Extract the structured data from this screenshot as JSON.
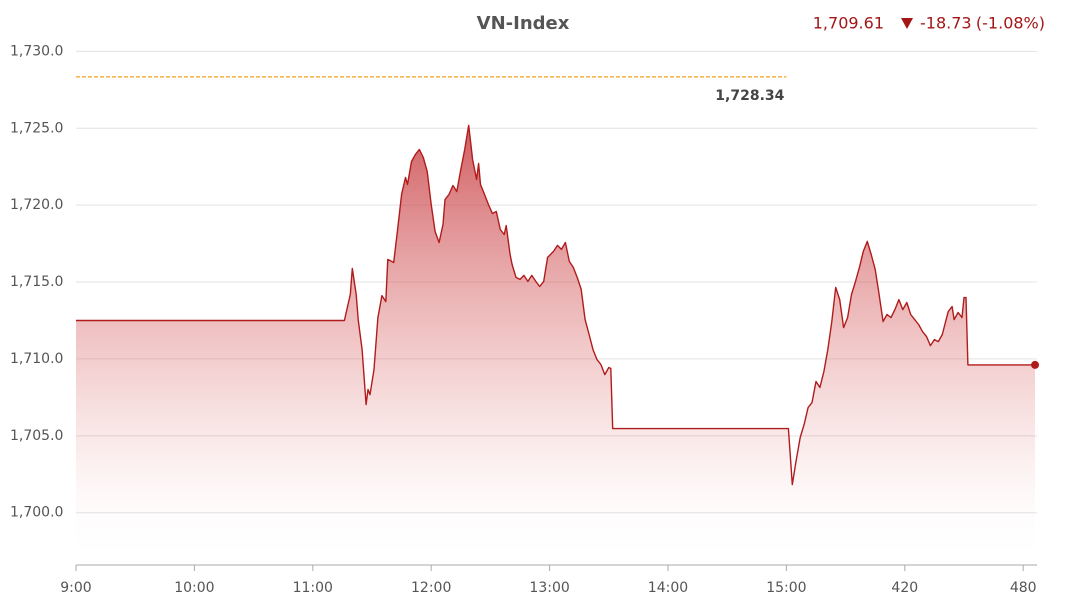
{
  "chart_data": {
    "type": "area",
    "title": "VN-Index",
    "summary": {
      "last": "1,709.61",
      "change": "-18.73",
      "percent": "(-1.08%)"
    },
    "color": "#b01c1c",
    "grid": true,
    "xlim": [
      0,
      487
    ],
    "ylim": [
      1696.6,
      1731
    ],
    "xticks": [
      {
        "value": 0,
        "label": "9:00"
      },
      {
        "value": 60,
        "label": "10:00"
      },
      {
        "value": 120,
        "label": "11:00"
      },
      {
        "value": 180,
        "label": "12:00"
      },
      {
        "value": 240,
        "label": "13:00"
      },
      {
        "value": 300,
        "label": "14:00"
      },
      {
        "value": 360,
        "label": "15:00"
      },
      420,
      480
    ],
    "yticks": [
      {
        "value": 1700,
        "label": "1,700.0"
      },
      {
        "value": 1705,
        "label": "1,705.0"
      },
      {
        "value": 1710,
        "label": "1,710.0"
      },
      {
        "value": 1715,
        "label": "1,715.0"
      },
      {
        "value": 1720,
        "label": "1,720.0"
      },
      {
        "value": 1725,
        "label": "1,725.0"
      },
      {
        "value": 1730,
        "label": "1,730.0"
      }
    ],
    "reference": {
      "value": 1728.34,
      "label": "1,728.34",
      "color": "#f0a020"
    },
    "series": [
      {
        "name": "VN-Index",
        "x": [
          0,
          136,
          139,
          140,
          142,
          143,
          145,
          147,
          148,
          149,
          151,
          153,
          155,
          157,
          158,
          161,
          163,
          165,
          167,
          168,
          170,
          172,
          174,
          176,
          178,
          180,
          182,
          184,
          186,
          187,
          189,
          191,
          193,
          195,
          197,
          199,
          201,
          203,
          204,
          205,
          207,
          209,
          211,
          213,
          215,
          217,
          218,
          220,
          221,
          223,
          225,
          227,
          229,
          231,
          233,
          235,
          237,
          239,
          242,
          244,
          246,
          248,
          250,
          252,
          254,
          256,
          258,
          260,
          262,
          264,
          266,
          268,
          270,
          271,
          272,
          361,
          363,
          365,
          367,
          369,
          371,
          373,
          375,
          377,
          379,
          381,
          383,
          385,
          387,
          389,
          391,
          393,
          395,
          397,
          399,
          401,
          403,
          405,
          407,
          409,
          411,
          413,
          415,
          417,
          419,
          421,
          423,
          425,
          427,
          429,
          431,
          433,
          435,
          437,
          439,
          442,
          444,
          445,
          447,
          449,
          450,
          451,
          452,
          486
        ],
        "values": [
          1712.5,
          1712.5,
          1714.19,
          1715.88,
          1714.19,
          1712.56,
          1710.61,
          1707.03,
          1708.01,
          1707.68,
          1709.31,
          1712.69,
          1714.12,
          1713.73,
          1716.47,
          1716.27,
          1718.42,
          1720.7,
          1721.8,
          1721.35,
          1722.84,
          1723.3,
          1723.62,
          1723.1,
          1722.19,
          1720.05,
          1718.29,
          1717.57,
          1718.74,
          1720.37,
          1720.7,
          1721.28,
          1720.89,
          1722.32,
          1723.62,
          1725.19,
          1722.97,
          1721.67,
          1722.71,
          1721.35,
          1720.7,
          1720.05,
          1719.46,
          1719.59,
          1718.42,
          1718.09,
          1718.68,
          1716.79,
          1716.14,
          1715.3,
          1715.17,
          1715.43,
          1715.04,
          1715.43,
          1715.04,
          1714.71,
          1715.04,
          1716.6,
          1716.99,
          1717.38,
          1717.12,
          1717.57,
          1716.34,
          1715.95,
          1715.3,
          1714.52,
          1712.56,
          1711.59,
          1710.61,
          1709.96,
          1709.64,
          1708.98,
          1709.44,
          1709.38,
          1705.47,
          1705.47,
          1701.83,
          1703.45,
          1704.89,
          1705.73,
          1706.84,
          1707.16,
          1708.53,
          1708.14,
          1709.18,
          1710.61,
          1712.43,
          1714.65,
          1713.86,
          1712.04,
          1712.69,
          1714.19,
          1715.04,
          1715.95,
          1716.99,
          1717.64,
          1716.79,
          1715.82,
          1714.19,
          1712.43,
          1712.89,
          1712.69,
          1713.21,
          1713.86,
          1713.21,
          1713.67,
          1712.89,
          1712.56,
          1712.24,
          1711.78,
          1711.46,
          1710.87,
          1711.26,
          1711.13,
          1711.59,
          1713.08,
          1713.41,
          1712.56,
          1713.02,
          1712.69,
          1713.99,
          1713.99,
          1709.61,
          1709.61
        ]
      }
    ]
  }
}
